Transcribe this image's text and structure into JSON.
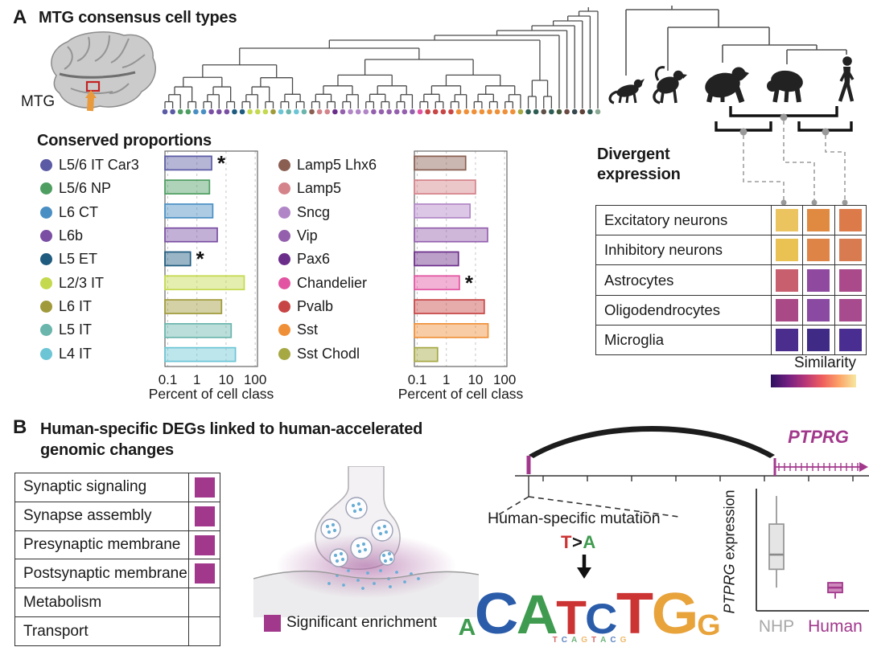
{
  "panel_a": {
    "label": "A",
    "title": "MTG consensus cell types",
    "brain_label": "MTG",
    "proportions_heading": "Conserved proportions",
    "divergent_heading_line1": "Divergent",
    "divergent_heading_line2": "expression",
    "similarity_label": "Similarity",
    "species_icons": [
      "marmoset",
      "macaque",
      "gorilla",
      "chimpanzee",
      "human"
    ],
    "dendrogram_leaf_colors": [
      "#5a5aa5",
      "#5a5aa5",
      "#4e9e62",
      "#4e9e62",
      "#4a8fc4",
      "#4a8fc4",
      "#7a4fa3",
      "#7a4fa3",
      "#7a4fa3",
      "#1f5b7f",
      "#1f5b7f",
      "#c4d94e",
      "#c4d94e",
      "#c4d94e",
      "#a09a3a",
      "#6cc5d5",
      "#6ab5ac",
      "#6cc5d5",
      "#6ab5ac",
      "#8a5f52",
      "#d4838a",
      "#d4838a",
      "#6b2d8a",
      "#9460ad",
      "#b186c7",
      "#b186c7",
      "#b186c7",
      "#9460ad",
      "#9460ad",
      "#9460ad",
      "#9460ad",
      "#9460ad",
      "#9460ad",
      "#e254a2",
      "#c84545",
      "#c84545",
      "#c84545",
      "#c84545",
      "#ef9038",
      "#ef9038",
      "#ef9038",
      "#ef9038",
      "#ef9038",
      "#ef9038",
      "#ef9038",
      "#ef9038",
      "#a5a843",
      "#2e5d54",
      "#2e5d54",
      "#5f5048",
      "#2e5d54",
      "#44583a",
      "#6b4a44",
      "#37474f",
      "#5d4037",
      "#2e5d54",
      "#8aa893"
    ]
  },
  "chart_data": [
    {
      "type": "bar",
      "orientation": "horizontal",
      "xscale": "log",
      "group": "excitatory",
      "categories": [
        "L5/6 IT Car3",
        "L5/6 NP",
        "L6 CT",
        "L6b",
        "L5 ET",
        "L2/3 IT",
        "L6 IT",
        "L5 IT",
        "L4 IT"
      ],
      "values": [
        3.2,
        2.7,
        3.5,
        5,
        0.6,
        42,
        7,
        15,
        21
      ],
      "significant": [
        true,
        false,
        false,
        false,
        true,
        false,
        false,
        false,
        false
      ],
      "colors": [
        "#5a5aa5",
        "#4e9e62",
        "#4a8fc4",
        "#7a4fa3",
        "#1f5b7f",
        "#c4d94e",
        "#a09a3a",
        "#6ab5ac",
        "#6cc5d5"
      ],
      "xticks": [
        "0.1",
        "1",
        "10",
        "100"
      ],
      "xtick_values": [
        0.1,
        1,
        10,
        100
      ],
      "xlabel": "Percent of cell class",
      "xlim": [
        0.08,
        120
      ]
    },
    {
      "type": "bar",
      "orientation": "horizontal",
      "xscale": "log",
      "group": "inhibitory",
      "categories": [
        "Lamp5 Lhx6",
        "Lamp5",
        "Sncg",
        "Vip",
        "Pax6",
        "Chandelier",
        "Pvalb",
        "Sst",
        "Sst Chodl"
      ],
      "values": [
        4.6,
        10,
        6.5,
        26,
        2.6,
        2.8,
        20,
        27,
        0.5
      ],
      "significant": [
        false,
        false,
        false,
        false,
        false,
        true,
        false,
        false,
        false
      ],
      "colors": [
        "#8a5f52",
        "#d4838a",
        "#b186c7",
        "#9460ad",
        "#6b2d8a",
        "#e254a2",
        "#c84545",
        "#ef9038",
        "#a5a843"
      ],
      "xticks": [
        "0.1",
        "1",
        "10",
        "100"
      ],
      "xtick_values": [
        0.1,
        1,
        10,
        100
      ],
      "xlabel": "Percent of cell class",
      "xlim": [
        0.08,
        120
      ]
    },
    {
      "type": "heatmap",
      "title": "Divergent expression",
      "rows": [
        "Excitatory neurons",
        "Inhibitory neurons",
        "Astrocytes",
        "Oligodendrocytes",
        "Microglia"
      ],
      "cell_colors": [
        [
          "#ecc45f",
          "#e08a41",
          "#dc7a4a"
        ],
        [
          "#eac254",
          "#de8446",
          "#d97b50"
        ],
        [
          "#c75f6e",
          "#8f4a9f",
          "#ab4a8a"
        ],
        [
          "#a94a87",
          "#8a4aa2",
          "#a74a8e"
        ],
        [
          "#4b2d8d",
          "#3f2b85",
          "#4a2d90"
        ]
      ],
      "legend_label": "Similarity",
      "legend_gradient": [
        "#2d1160",
        "#721f81",
        "#b5367a",
        "#ee5d5e",
        "#fca368",
        "#f6e8a0"
      ]
    },
    {
      "type": "box",
      "ylabel_italic": "PTPRG",
      "ylabel_rest": " expression",
      "categories": [
        "NHP",
        "Human"
      ],
      "category_colors": [
        "#a8a8a8",
        "#a2388c"
      ],
      "series": [
        {
          "name": "NHP",
          "stroke": "#999999",
          "fill": "#e6e5e6",
          "median_color": "#8a8a8a",
          "whisker_low": 0.19,
          "q1": 0.34,
          "median": 0.46,
          "q3": 0.71,
          "whisker_high": 0.94
        },
        {
          "name": "Human",
          "stroke": "#a2388c",
          "fill": "#cf8abd",
          "median_color": "#a2388c",
          "whisker_low": 0.1,
          "q1": 0.15,
          "median": 0.19,
          "q3": 0.23,
          "whisker_high": 0.23
        }
      ]
    }
  ],
  "panel_b": {
    "label": "B",
    "title_line1": "Human-specific DEGs linked to human-accelerated",
    "title_line2": "genomic changes",
    "accent_color": "#a2388c",
    "go_table": {
      "rows": [
        {
          "label": "Synaptic signaling",
          "significant": true
        },
        {
          "label": "Synapse assembly",
          "significant": true
        },
        {
          "label": "Presynaptic membrane",
          "significant": true
        },
        {
          "label": "Postsynaptic membrane",
          "significant": true
        },
        {
          "label": "Metabolism",
          "significant": false
        },
        {
          "label": "Transport",
          "significant": false
        }
      ],
      "legend_label": "Significant enrichment"
    },
    "gene": {
      "name": "PTPRG",
      "mutation_label": "Human-specific mutation",
      "mutation_from": "T",
      "mutation_gt": ">",
      "mutation_to": "A"
    },
    "logo": {
      "nt_colors": {
        "A": "#3f9b4f",
        "C": "#2a5caa",
        "T": "#cc3333",
        "G": "#e8a33b"
      },
      "letters": [
        {
          "char": "A",
          "height": 0.4
        },
        {
          "char": "C",
          "height": 1.0
        },
        {
          "char": "A",
          "height": 0.95
        },
        {
          "char": "T",
          "height": 0.82
        },
        {
          "char": "C",
          "height": 0.74
        },
        {
          "char": "T",
          "height": 1.0
        },
        {
          "char": "G",
          "height": 1.0
        },
        {
          "char": "G",
          "height": 0.5
        }
      ],
      "minor_letters": [
        "T",
        "C",
        "A",
        "G",
        "T",
        "A",
        "C",
        "G"
      ]
    }
  }
}
